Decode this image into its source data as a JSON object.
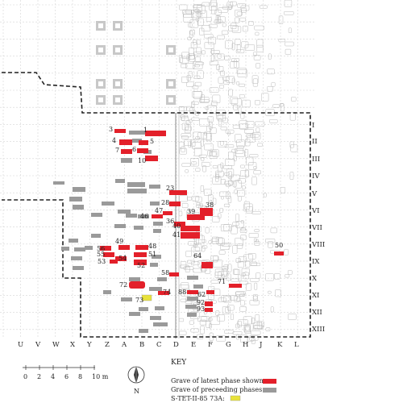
{
  "rows": [
    "I",
    "II",
    "III",
    "IV",
    "V",
    "VI",
    "VII",
    "VIII",
    "IX",
    "X",
    "XI",
    "XII",
    "XIII"
  ],
  "columns": [
    "U",
    "V",
    "W",
    "X",
    "Y",
    "Z",
    "A",
    "B",
    "C",
    "D",
    "E",
    "F",
    "G",
    "H",
    "J",
    "K",
    "L"
  ],
  "graves_latest": [
    "1",
    "3",
    "4",
    "5",
    "6",
    "7",
    "10",
    "23",
    "28",
    "36",
    "38",
    "39",
    "40",
    "41",
    "46",
    "47",
    "48",
    "49",
    "50",
    "51",
    "52",
    "54",
    "55",
    "56",
    "58",
    "62",
    "64",
    "71",
    "72",
    "73",
    "74",
    "88",
    "92",
    "93",
    "53"
  ],
  "scale": {
    "ticks": [
      "0",
      "2",
      "4",
      "6",
      "8",
      "10 m"
    ]
  },
  "north_label": "N",
  "key": {
    "title": "KEY",
    "latest": "Grave of latest phase shown:",
    "preceding": "Grave of preceeding phases:",
    "special": "S-TET-II-85 73A:"
  },
  "colors": {
    "latest": "#e3202a",
    "preceding": "#9a9a9a",
    "special": "#e8e23a",
    "grid": "#cfcfcf"
  }
}
